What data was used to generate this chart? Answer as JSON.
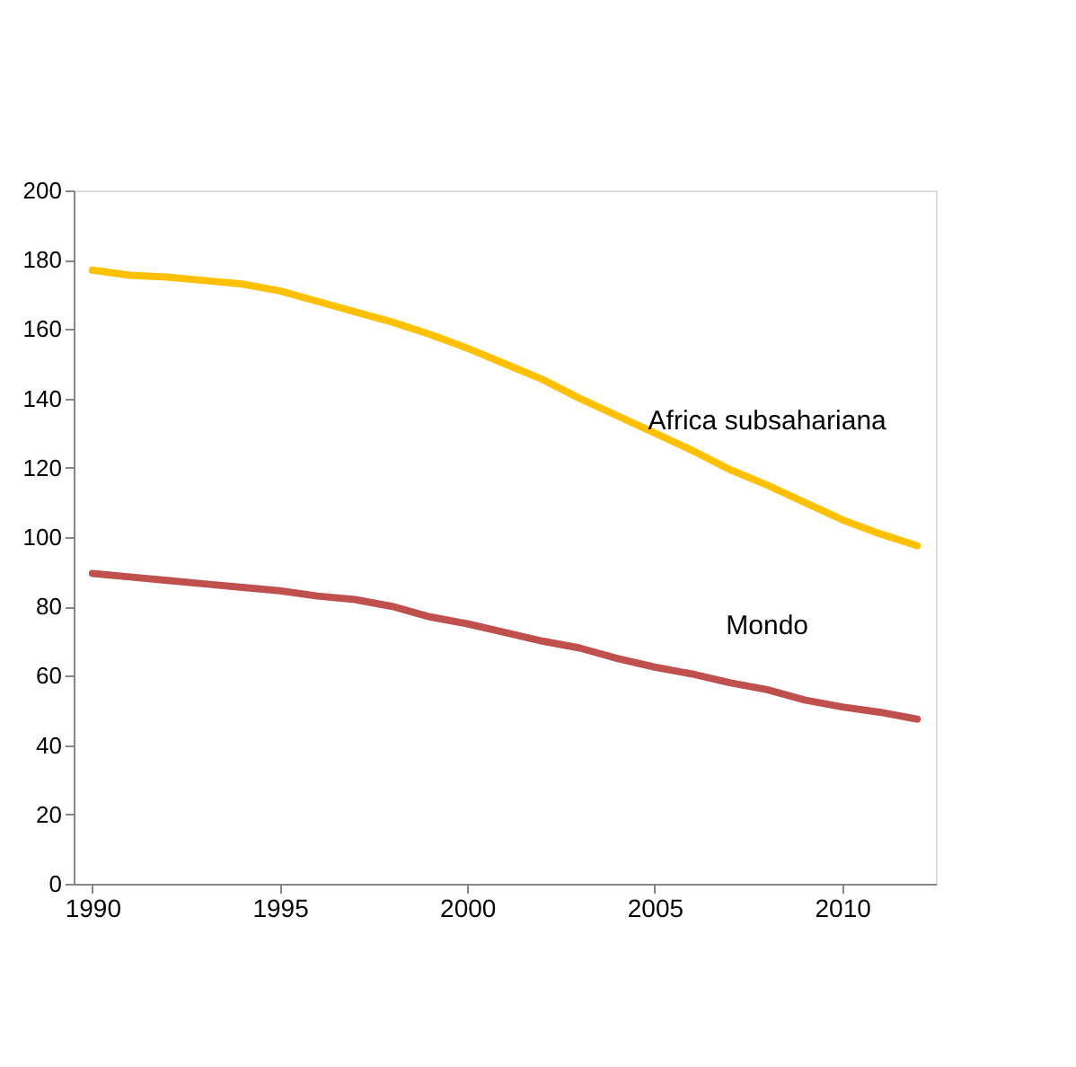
{
  "chart_data": {
    "type": "line",
    "x": [
      1990,
      1991,
      1992,
      1993,
      1994,
      1995,
      1996,
      1997,
      1998,
      1999,
      2000,
      2001,
      2002,
      2003,
      2004,
      2005,
      2006,
      2007,
      2008,
      2009,
      2010,
      2011,
      2012
    ],
    "series": [
      {
        "name": "Africa subsahariana",
        "color": "#ffc000",
        "values": [
          177,
          175.5,
          175,
          174,
          173,
          171,
          168,
          165,
          162,
          158.5,
          154.5,
          150,
          145.5,
          140,
          135,
          130,
          125,
          119.5,
          115,
          110,
          105,
          101,
          97.5
        ]
      },
      {
        "name": "Mondo",
        "color": "#c0504d",
        "values": [
          89.5,
          88.5,
          87.5,
          86.5,
          85.5,
          84.5,
          83,
          82,
          80,
          77,
          75,
          72.5,
          70,
          68,
          65,
          62.5,
          60.5,
          58,
          56,
          53,
          51,
          49.5,
          47.5
        ]
      }
    ],
    "xlim": [
      1989.5,
      2012.5
    ],
    "xticks": [
      1990,
      1995,
      2000,
      2005,
      2010
    ],
    "ylim": [
      0,
      200
    ],
    "yticks": [
      0,
      20,
      40,
      60,
      80,
      100,
      120,
      140,
      160,
      180,
      200
    ],
    "grid": false,
    "legend": false,
    "marker": "none",
    "line_style": "solid"
  }
}
